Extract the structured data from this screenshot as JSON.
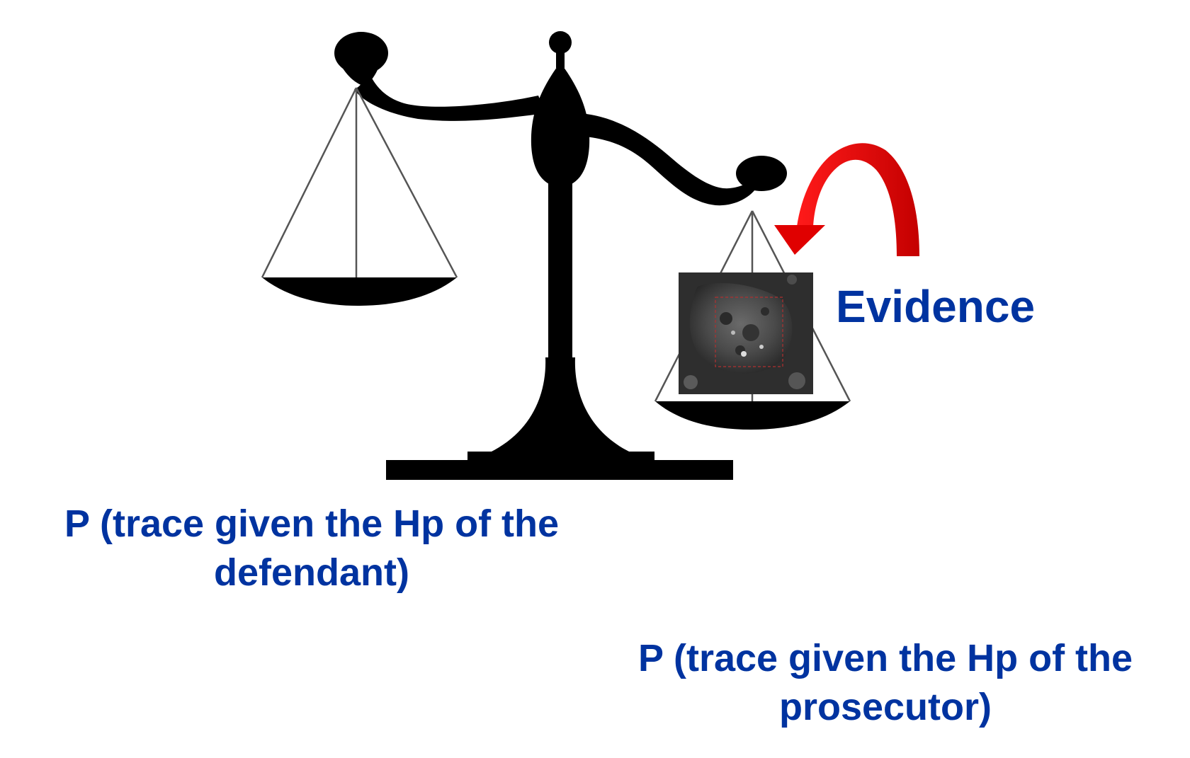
{
  "labels": {
    "evidence": "Evidence",
    "defendant": {
      "line1": "P (trace given the Hp of the",
      "line2": "defendant)"
    },
    "prosecutor": {
      "line1": "P (trace given the Hp of the",
      "line2": "prosecutor)"
    }
  },
  "colors": {
    "label_text": "#0033a0",
    "scale": "#000000",
    "arrow": "#e00000",
    "evidence_box": "#2e2e2e"
  },
  "icons": {
    "scale": "balance-scale-icon",
    "arrow": "curved-arrow-icon",
    "evidence": "microscope-particle-image"
  }
}
